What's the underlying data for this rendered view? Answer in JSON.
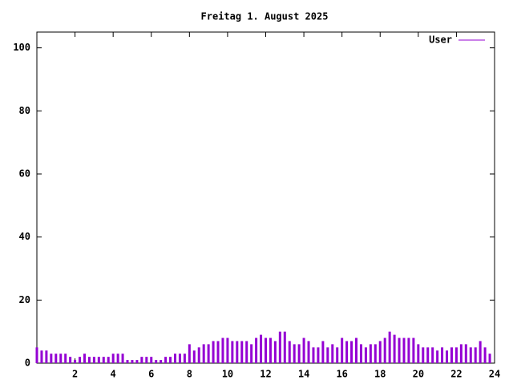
{
  "chart_data": {
    "type": "impulse",
    "title": "Freitag 1. August 2025",
    "x": [
      0,
      0.25,
      0.5,
      0.75,
      1,
      1.25,
      1.5,
      1.75,
      2,
      2.25,
      2.5,
      2.75,
      3,
      3.25,
      3.5,
      3.75,
      4,
      4.25,
      4.5,
      4.75,
      5,
      5.25,
      5.5,
      5.75,
      6,
      6.25,
      6.5,
      6.75,
      7,
      7.25,
      7.5,
      7.75,
      8,
      8.25,
      8.5,
      8.75,
      9,
      9.25,
      9.5,
      9.75,
      10,
      10.25,
      10.5,
      10.75,
      11,
      11.25,
      11.5,
      11.75,
      12,
      12.25,
      12.5,
      12.75,
      13,
      13.25,
      13.5,
      13.75,
      14,
      14.25,
      14.5,
      14.75,
      15,
      15.25,
      15.5,
      15.75,
      16,
      16.25,
      16.5,
      16.75,
      17,
      17.25,
      17.5,
      17.75,
      18,
      18.25,
      18.5,
      18.75,
      19,
      19.25,
      19.5,
      19.75,
      20,
      20.25,
      20.5,
      20.75,
      21,
      21.25,
      21.5,
      21.75,
      22,
      22.25,
      22.5,
      22.75,
      23,
      23.25,
      23.5,
      23.75
    ],
    "series": [
      {
        "name": "User",
        "color": "#9400d3",
        "values": [
          5,
          4,
          4,
          3,
          3,
          3,
          3,
          2,
          1,
          2,
          3,
          2,
          2,
          2,
          2,
          2,
          3,
          3,
          3,
          1,
          1,
          1,
          2,
          2,
          2,
          1,
          1,
          2,
          2,
          3,
          3,
          3,
          6,
          4,
          5,
          6,
          6,
          7,
          7,
          8,
          8,
          7,
          7,
          7,
          7,
          6,
          8,
          9,
          8,
          8,
          7,
          10,
          10,
          7,
          6,
          6,
          8,
          7,
          5,
          5,
          7,
          5,
          6,
          5,
          8,
          7,
          7,
          8,
          6,
          5,
          6,
          6,
          7,
          8,
          10,
          9,
          8,
          8,
          8,
          8,
          6,
          5,
          5,
          5,
          4,
          5,
          4,
          5,
          5,
          6,
          6,
          5,
          5,
          7,
          5,
          3
        ]
      }
    ],
    "xlim": [
      0,
      24
    ],
    "xticks": [
      2,
      4,
      6,
      8,
      10,
      12,
      14,
      16,
      18,
      20,
      22,
      24
    ],
    "ylim": [
      0,
      105
    ],
    "yticks": [
      0,
      20,
      40,
      60,
      80,
      100
    ],
    "legend": "top-right"
  }
}
